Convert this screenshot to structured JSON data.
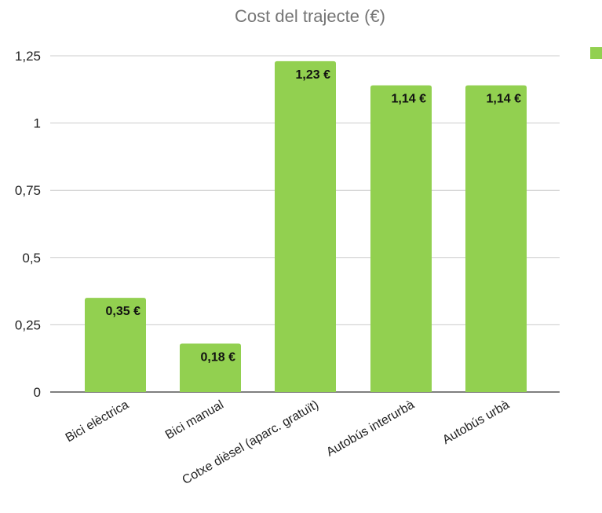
{
  "chart_data": {
    "type": "bar",
    "title": "Cost del trajecte (€)",
    "xlabel": "",
    "ylabel": "",
    "categories": [
      "Bici elèctrica",
      "Bici manual",
      "Cotxe dièsel (aparc. gratuït)",
      "Autobús interurbà",
      "Autobús urbà"
    ],
    "values": [
      0.35,
      0.18,
      1.23,
      1.14,
      1.14
    ],
    "data_labels": [
      "0,35 €",
      "0,18 €",
      "1,23 €",
      "1,14 €",
      "1,14 €"
    ],
    "ylim": [
      0,
      1.25
    ],
    "yticks": [
      0,
      0.25,
      0.5,
      0.75,
      1,
      1.25
    ],
    "ytick_labels": [
      "0",
      "0,25",
      "0,5",
      "0,75",
      "1",
      "1,25"
    ],
    "grid": true,
    "legend": {
      "position": "right",
      "entries": [
        ""
      ]
    },
    "colors": {
      "bar": "#92d050"
    }
  }
}
